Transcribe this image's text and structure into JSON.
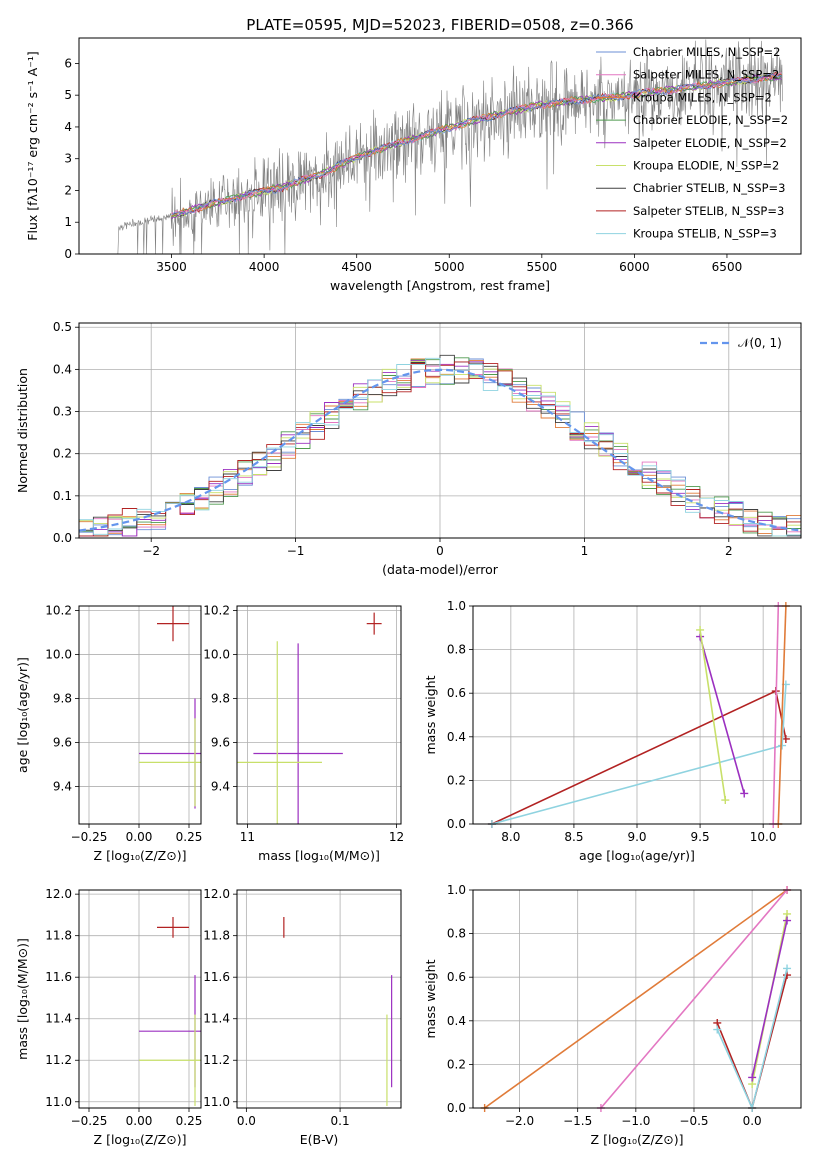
{
  "figure_title": "PLATE=0595, MJD=52023, FIBERID=0508, z=0.366",
  "colors": {
    "chabrier_miles": "#6b8fd6",
    "salpeter_miles": "#e377c2",
    "kroupa_miles": "#e07b39",
    "chabrier_elodie": "#4f9a4f",
    "salpeter_elodie": "#9b30c0",
    "kroupa_elodie": "#c8e06a",
    "chabrier_stelib": "#404040",
    "salpeter_stelib": "#b22222",
    "kroupa_stelib": "#8fd3e0",
    "gaussian": "#6495ed",
    "grid": "#b0b0b0",
    "spectrum_data": "#808080"
  },
  "chart_data": [
    {
      "id": "spectrum",
      "type": "line",
      "xlabel": "wavelength [Angstrom, rest frame]",
      "ylabel": "Flux [fλ10⁻¹⁷ erg cm⁻² s⁻¹ A⁻¹]",
      "xlim": [
        3000,
        6900
      ],
      "ylim": [
        0,
        6.8
      ],
      "xticks": [
        "3500",
        "4000",
        "4500",
        "5000",
        "5500",
        "6000",
        "6500"
      ],
      "yticks": [
        "0",
        "1",
        "2",
        "3",
        "4",
        "5",
        "6"
      ],
      "legend_position": "top-right",
      "legend": [
        {
          "label": "Chabrier MILES, N_SSP=2",
          "color_key": "chabrier_miles"
        },
        {
          "label": "Salpeter MILES, N_SSP=2",
          "color_key": "salpeter_miles"
        },
        {
          "label": "Kroupa MILES, N_SSP=2",
          "color_key": "kroupa_miles"
        },
        {
          "label": "Chabrier ELODIE, N_SSP=2",
          "color_key": "chabrier_elodie"
        },
        {
          "label": "Salpeter ELODIE, N_SSP=2",
          "color_key": "salpeter_elodie"
        },
        {
          "label": "Kroupa ELODIE, N_SSP=2",
          "color_key": "kroupa_elodie"
        },
        {
          "label": "Chabrier STELIB, N_SSP=3",
          "color_key": "chabrier_stelib"
        },
        {
          "label": "Salpeter STELIB, N_SSP=3",
          "color_key": "salpeter_stelib"
        },
        {
          "label": "Kroupa STELIB, N_SSP=3",
          "color_key": "kroupa_stelib"
        }
      ],
      "model_continuum": {
        "x": [
          3200,
          3500,
          3700,
          3900,
          4100,
          4300,
          4500,
          4700,
          4900,
          5100,
          5300,
          5500,
          5700,
          5900,
          6100,
          6300,
          6500,
          6700,
          6800
        ],
        "y": [
          0.85,
          1.2,
          1.55,
          1.85,
          2.1,
          2.5,
          3.05,
          3.45,
          3.8,
          4.15,
          4.45,
          4.7,
          4.85,
          4.95,
          5.1,
          5.25,
          5.4,
          5.55,
          5.6
        ]
      }
    },
    {
      "id": "residuals",
      "type": "line",
      "xlabel": "(data-model)/error",
      "ylabel": "Normed distribution",
      "xlim": [
        -2.5,
        2.5
      ],
      "ylim": [
        0,
        0.51
      ],
      "xticks": [
        "−2",
        "−1",
        "0",
        "1",
        "2"
      ],
      "yticks": [
        "0.0",
        "0.1",
        "0.2",
        "0.3",
        "0.4",
        "0.5"
      ],
      "legend_position": "top-right",
      "legend": [
        {
          "label": "𝒩(0, 1)",
          "color_key": "gaussian"
        }
      ],
      "gaussian": {
        "mean": 0,
        "sigma": 1
      }
    },
    {
      "id": "age_vs_Z",
      "type": "scatter",
      "xlabel": "Z [log₁₀(Z/Z⊙)]",
      "ylabel": "age  [log₁₀(age/yr)]",
      "xlim": [
        -0.3,
        0.31
      ],
      "ylim": [
        9.23,
        10.22
      ],
      "xticks": [
        "−0.25",
        "0.00",
        "0.25"
      ],
      "yticks": [
        "9.4",
        "9.6",
        "9.8",
        "10.0",
        "10.2"
      ],
      "points": [
        {
          "x": 0.17,
          "y": 10.14,
          "xerr": 0.08,
          "yerr": 0.08,
          "color_key": "salpeter_stelib"
        },
        {
          "x": 0.28,
          "y": 9.55,
          "xerr": 0.28,
          "yerr": 0.25,
          "color_key": "salpeter_elodie"
        },
        {
          "x": 0.28,
          "y": 9.51,
          "xerr": 0.28,
          "yerr": 0.2,
          "color_key": "kroupa_elodie"
        }
      ]
    },
    {
      "id": "age_vs_mass",
      "type": "scatter",
      "xlabel": "mass [log₁₀(M/M⊙)]",
      "ylabel": "",
      "xlim": [
        10.93,
        12.03
      ],
      "ylim": [
        9.23,
        10.22
      ],
      "xticks": [
        "11",
        "12"
      ],
      "yticks": [
        "9.4",
        "9.6",
        "9.8",
        "10.0",
        "10.2"
      ],
      "points": [
        {
          "x": 11.85,
          "y": 10.14,
          "xerr": 0.05,
          "yerr": 0.05,
          "color_key": "salpeter_stelib"
        },
        {
          "x": 11.34,
          "y": 9.55,
          "xerr": 0.3,
          "yerr": 0.5,
          "color_key": "salpeter_elodie"
        },
        {
          "x": 11.2,
          "y": 9.51,
          "xerr": 0.3,
          "yerr": 0.55,
          "color_key": "kroupa_elodie"
        }
      ]
    },
    {
      "id": "massweight_vs_age",
      "type": "line",
      "xlabel": "age  [log₁₀(age/yr)]",
      "ylabel": "mass weight",
      "xlim": [
        7.7,
        10.3
      ],
      "ylim": [
        0,
        1
      ],
      "xticks": [
        "8.0",
        "8.5",
        "9.0",
        "9.5",
        "10.0"
      ],
      "yticks": [
        "0.0",
        "0.2",
        "0.4",
        "0.6",
        "0.8",
        "1.0"
      ],
      "series": [
        {
          "color_key": "salpeter_stelib",
          "x": [
            7.85,
            10.1,
            10.18
          ],
          "y": [
            0.0,
            0.61,
            0.39
          ]
        },
        {
          "color_key": "kroupa_stelib",
          "x": [
            7.85,
            10.15,
            10.18
          ],
          "y": [
            0.0,
            0.36,
            0.64
          ]
        },
        {
          "color_key": "salpeter_elodie",
          "x": [
            9.5,
            9.85
          ],
          "y": [
            0.86,
            0.14
          ]
        },
        {
          "color_key": "kroupa_elodie",
          "x": [
            9.5,
            9.7
          ],
          "y": [
            0.89,
            0.11
          ]
        },
        {
          "color_key": "kroupa_miles",
          "x": [
            10.12,
            10.18
          ],
          "y": [
            0.0,
            1.0
          ]
        },
        {
          "color_key": "salpeter_miles",
          "x": [
            10.08,
            10.12
          ],
          "y": [
            0.0,
            1.0
          ]
        }
      ]
    },
    {
      "id": "mass_vs_Z",
      "type": "scatter",
      "xlabel": "Z [log₁₀(Z/Z⊙)]",
      "ylabel": "mass [log₁₀(M/M⊙)]",
      "xlim": [
        -0.3,
        0.31
      ],
      "ylim": [
        10.97,
        12.02
      ],
      "xticks": [
        "−0.25",
        "0.00",
        "0.25"
      ],
      "yticks": [
        "11.0",
        "11.2",
        "11.4",
        "11.6",
        "11.8",
        "12.0"
      ],
      "points": [
        {
          "x": 0.17,
          "y": 11.84,
          "xerr": 0.08,
          "yerr": 0.05,
          "color_key": "salpeter_stelib"
        },
        {
          "x": 0.28,
          "y": 11.34,
          "xerr": 0.28,
          "yerr": 0.27,
          "color_key": "salpeter_elodie"
        },
        {
          "x": 0.28,
          "y": 11.2,
          "xerr": 0.28,
          "yerr": 0.22,
          "color_key": "kroupa_elodie"
        }
      ]
    },
    {
      "id": "mass_vs_EBV",
      "type": "scatter",
      "xlabel": "E(B-V)",
      "ylabel": "",
      "xlim": [
        -0.01,
        0.165
      ],
      "ylim": [
        10.97,
        12.02
      ],
      "xticks": [
        "0.0",
        "0.1"
      ],
      "yticks": [
        "11.0",
        "11.2",
        "11.4",
        "11.6",
        "11.8",
        "12.0"
      ],
      "points": [
        {
          "x": 0.04,
          "y": 11.84,
          "xerr": 0,
          "yerr": 0.05,
          "color_key": "salpeter_stelib"
        },
        {
          "x": 0.155,
          "y": 11.34,
          "xerr": 0,
          "yerr": 0.27,
          "color_key": "salpeter_elodie"
        },
        {
          "x": 0.15,
          "y": 11.2,
          "xerr": 0,
          "yerr": 0.22,
          "color_key": "kroupa_elodie"
        }
      ]
    },
    {
      "id": "massweight_vs_Z",
      "type": "line",
      "xlabel": "Z [log₁₀(Z/Z⊙)]",
      "ylabel": "mass weight",
      "xlim": [
        -2.4,
        0.42
      ],
      "ylim": [
        0,
        1
      ],
      "xticks": [
        "−2.0",
        "−1.5",
        "−1.0",
        "−0.5",
        "0.0"
      ],
      "yticks": [
        "0.0",
        "0.2",
        "0.4",
        "0.6",
        "0.8",
        "1.0"
      ],
      "series": [
        {
          "color_key": "kroupa_miles",
          "x": [
            -2.3,
            0.3
          ],
          "y": [
            0.0,
            1.0
          ]
        },
        {
          "color_key": "salpeter_miles",
          "x": [
            -1.3,
            0.3
          ],
          "y": [
            0.0,
            1.0
          ]
        },
        {
          "color_key": "salpeter_stelib",
          "x": [
            -0.3,
            0.0,
            0.3
          ],
          "y": [
            0.39,
            0.0,
            0.61
          ]
        },
        {
          "color_key": "kroupa_stelib",
          "x": [
            -0.3,
            0.0,
            0.3
          ],
          "y": [
            0.36,
            0.0,
            0.64
          ]
        },
        {
          "color_key": "kroupa_elodie",
          "x": [
            0.0,
            0.3
          ],
          "y": [
            0.11,
            0.89
          ]
        },
        {
          "color_key": "salpeter_elodie",
          "x": [
            0.0,
            0.3
          ],
          "y": [
            0.14,
            0.86
          ]
        }
      ]
    }
  ]
}
